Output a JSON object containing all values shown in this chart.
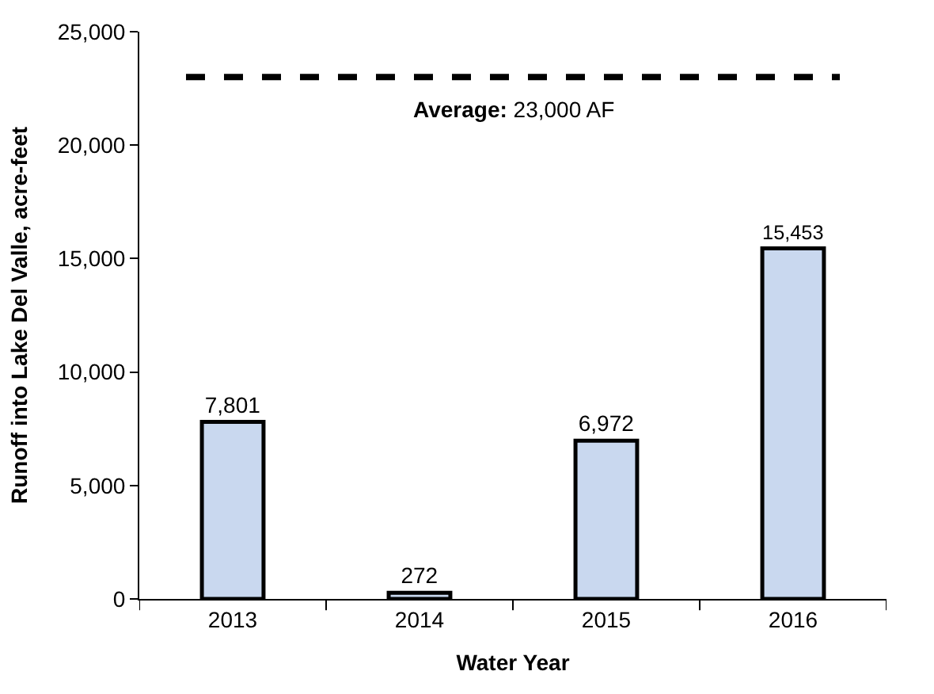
{
  "chart_data": {
    "type": "bar",
    "xlabel": "Water Year",
    "ylabel": "Runoff into Lake Del Valle, acre-feet",
    "categories": [
      "2013",
      "2014",
      "2015",
      "2016"
    ],
    "values": [
      7801,
      272,
      6972,
      15453
    ],
    "value_labels": [
      "7,801",
      "272",
      "6,972",
      "15,453"
    ],
    "color": "#c9d8ef",
    "ylim": [
      0,
      25000
    ],
    "yticks": [
      0,
      {
        "value": 5000,
        "label": "5,000"
      },
      {
        "value": 10000,
        "label": "10,000"
      },
      {
        "value": 15000,
        "label": "15,000"
      },
      {
        "value": 20000,
        "label": "20,000"
      },
      {
        "value": 25000,
        "label": "25,000"
      }
    ],
    "ref_lines": [
      {
        "axis": "y",
        "value": 23000,
        "label": "Average: 23,000 AF",
        "color": "#000000",
        "line_style": "dashed"
      }
    ],
    "legend": false
  }
}
